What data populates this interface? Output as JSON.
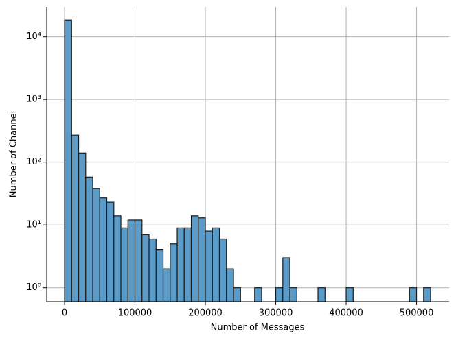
{
  "chart_data": {
    "type": "histogram",
    "x_label": "Number of Messages",
    "y_label": "Number of Channel",
    "bins": [
      0,
      10000,
      20000,
      30000,
      40000,
      50000,
      60000,
      70000,
      80000,
      90000,
      100000,
      110000,
      120000,
      130000,
      140000,
      150000,
      160000,
      170000,
      180000,
      190000,
      200000,
      210000,
      220000,
      230000,
      240000,
      250000,
      260000,
      270000,
      280000,
      290000,
      300000,
      310000,
      320000,
      330000,
      340000,
      350000,
      360000,
      370000,
      380000,
      390000,
      400000,
      410000,
      420000,
      430000,
      440000,
      450000,
      460000,
      470000,
      480000,
      490000,
      500000,
      510000,
      520000
    ],
    "counts": [
      18500,
      270,
      140,
      58,
      38,
      27,
      23,
      14,
      9,
      12,
      12,
      7,
      6,
      4,
      2,
      5,
      9,
      9,
      14,
      13,
      8,
      9,
      6,
      2,
      1,
      0,
      0,
      1,
      0,
      0,
      1,
      3,
      1,
      0,
      0,
      0,
      1,
      0,
      0,
      0,
      1,
      0,
      0,
      0,
      0,
      0,
      0,
      0,
      0,
      1,
      0,
      1
    ],
    "color": "#5b9bc8",
    "edge_color": "#1a1a1a",
    "xlim": [
      -25400,
      546300
    ],
    "xticks": [
      0,
      100000,
      200000,
      300000,
      400000,
      500000
    ],
    "ylim": [
      0.6,
      30000
    ],
    "log_y": true,
    "yticks": [
      {
        "value": 1,
        "label": "10⁰"
      },
      {
        "value": 10,
        "label": "10¹"
      },
      {
        "value": 100,
        "label": "10²"
      },
      {
        "value": 1000,
        "label": "10³"
      },
      {
        "value": 10000,
        "label": "10⁴"
      }
    ],
    "grid": true
  }
}
